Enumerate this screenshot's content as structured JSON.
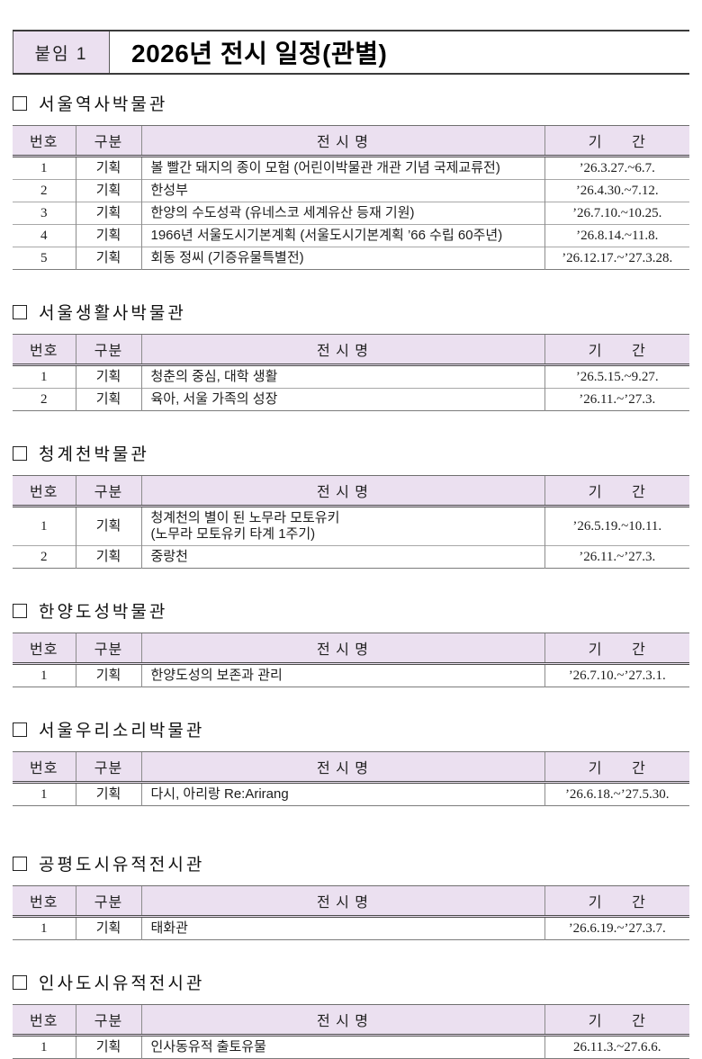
{
  "colors": {
    "header_fill": "#ebe0f0",
    "band_border": "#3b3b3b",
    "table_border": "#8c8c8c"
  },
  "header": {
    "attachment_label": "붙임 1",
    "title": "2026년 전시 일정(관별)"
  },
  "table_headers": {
    "no": "번호",
    "category": "구분",
    "name": "전 시 명",
    "period": "기      간"
  },
  "sections": [
    {
      "museum": "서울역사박물관",
      "rows": [
        {
          "no": "1",
          "category": "기획",
          "name": "볼 빨간 돼지의 종이 모험 (어린이박물관 개관 기념 국제교류전)",
          "period": "’26.3.27.~6.7."
        },
        {
          "no": "2",
          "category": "기획",
          "name": "한성부",
          "period": "’26.4.30.~7.12."
        },
        {
          "no": "3",
          "category": "기획",
          "name": "한양의 수도성곽 (유네스코 세계유산 등재 기원)",
          "period": "’26.7.10.~10.25."
        },
        {
          "no": "4",
          "category": "기획",
          "name": "1966년 서울도시기본계획 (서울도시기본계획 ’66 수립 60주년)",
          "period": "’26.8.14.~11.8."
        },
        {
          "no": "5",
          "category": "기획",
          "name": "회동 정씨 (기증유물특별전)",
          "period": "’26.12.17.~’27.3.28."
        }
      ]
    },
    {
      "museum": "서울생활사박물관",
      "rows": [
        {
          "no": "1",
          "category": "기획",
          "name": "청춘의 중심, 대학 생활",
          "period": "’26.5.15.~9.27."
        },
        {
          "no": "2",
          "category": "기획",
          "name": "육아, 서울 가족의 성장",
          "period": "’26.11.~’27.3."
        }
      ]
    },
    {
      "museum": "청계천박물관",
      "rows": [
        {
          "no": "1",
          "category": "기획",
          "name": "청계천의 별이 된 노무라 모토유키\n(노무라 모토유키 타계 1주기)",
          "period": "’26.5.19.~10.11."
        },
        {
          "no": "2",
          "category": "기획",
          "name": "중랑천",
          "period": "’26.11.~’27.3."
        }
      ]
    },
    {
      "museum": "한양도성박물관",
      "rows": [
        {
          "no": "1",
          "category": "기획",
          "name": "한양도성의 보존과 관리",
          "period": "’26.7.10.~’27.3.1."
        }
      ]
    },
    {
      "museum": "서울우리소리박물관",
      "rows": [
        {
          "no": "1",
          "category": "기획",
          "name": "다시, 아리랑 Re:Arirang",
          "period": "’26.6.18.~’27.5.30."
        }
      ]
    },
    {
      "museum": "공평도시유적전시관",
      "rows": [
        {
          "no": "1",
          "category": "기획",
          "name": "태화관",
          "period": "’26.6.19.~’27.3.7."
        }
      ]
    },
    {
      "museum": "인사도시유적전시관",
      "rows": [
        {
          "no": "1",
          "category": "기획",
          "name": "인사동유적 출토유물",
          "period": "26.11.3.~27.6.6."
        }
      ]
    }
  ]
}
